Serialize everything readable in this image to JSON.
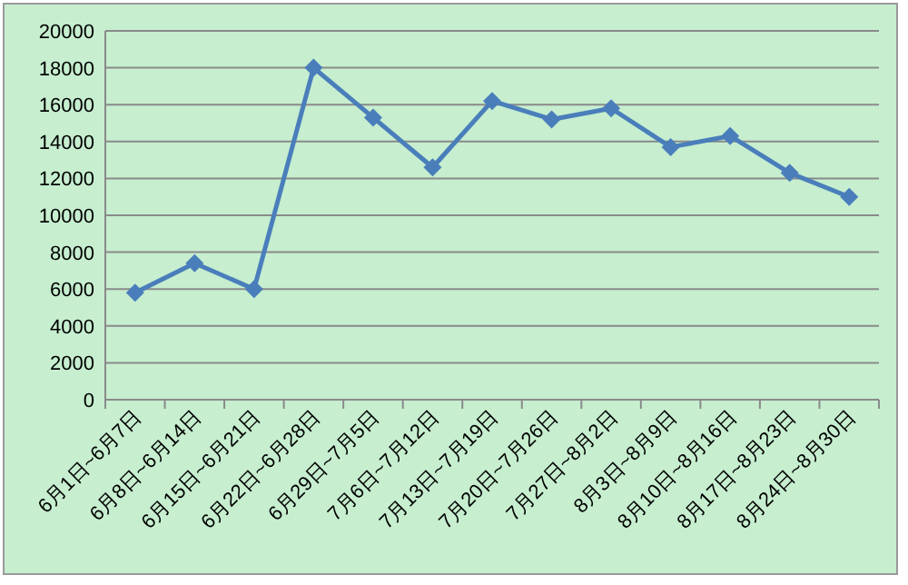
{
  "chart_data": {
    "type": "line",
    "categories": [
      "6月1日~6月7日",
      "6月8日~6月14日",
      "6月15日~6月21日",
      "6月22日~6月28日",
      "6月29日~7月5日",
      "7月6日~7月12日",
      "7月13日~7月19日",
      "7月20日~7月26日",
      "7月27日~8月2日",
      "8月3日~8月9日",
      "8月10日~8月16日",
      "8月17日~8月23日",
      "8月24日~8月30日"
    ],
    "series": [
      {
        "color": "#4a7ebb",
        "values": [
          5800,
          7400,
          6000,
          18000,
          15300,
          12600,
          16200,
          15200,
          15800,
          13700,
          14300,
          12300,
          11000
        ]
      }
    ],
    "ylim": [
      0,
      20000
    ],
    "yticks": [
      0,
      2000,
      4000,
      6000,
      8000,
      10000,
      12000,
      14000,
      16000,
      18000,
      20000
    ],
    "grid": "y",
    "marker": "diamond",
    "line_style": "solid"
  }
}
